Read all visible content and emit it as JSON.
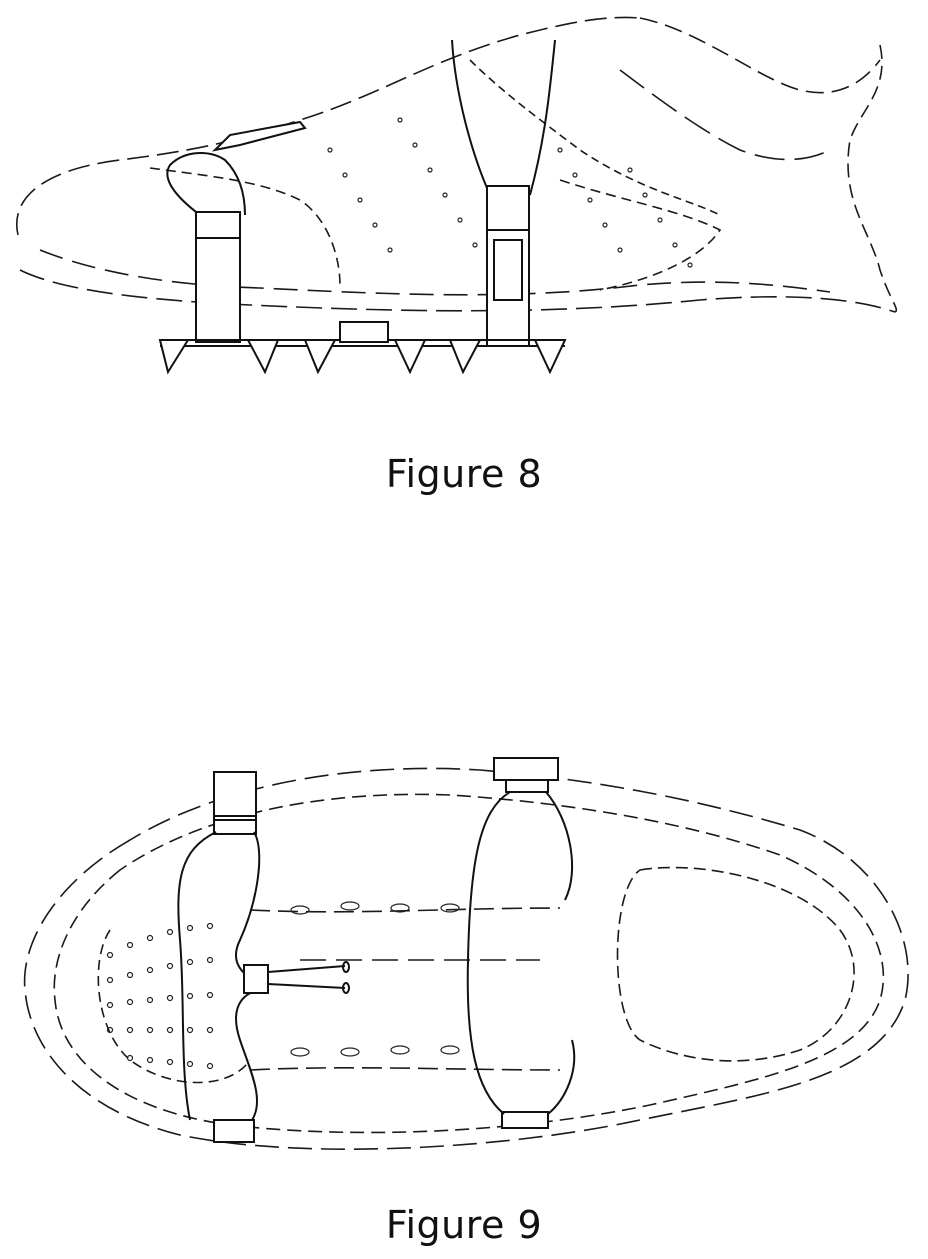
{
  "figures": [
    {
      "caption": "Figure 8"
    },
    {
      "caption": "Figure 9"
    }
  ],
  "colors": {
    "line": "#111111",
    "background": "#ffffff"
  }
}
